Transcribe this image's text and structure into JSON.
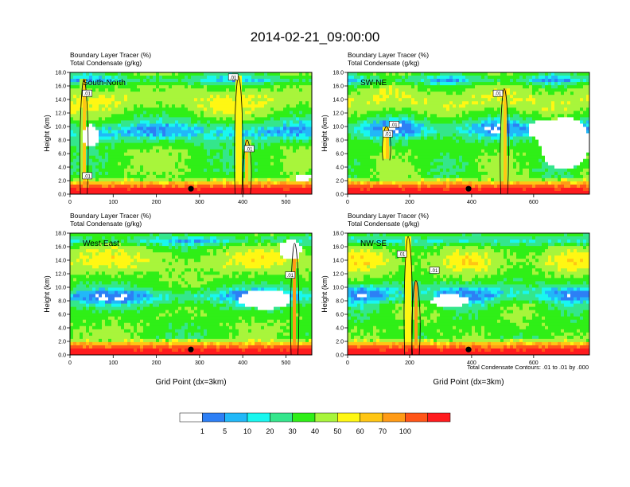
{
  "figure": {
    "title": "2014-02-21_09:00:00",
    "contour_note": "Total Condensate Contours: .01 to .01 by .000"
  },
  "colorbar": {
    "colors": [
      "#ffffff",
      "#2d7ff5",
      "#21b8f8",
      "#19f7ef",
      "#34e68c",
      "#2fef17",
      "#a8f53b",
      "#fff713",
      "#ffc614",
      "#ff9b16",
      "#ff5518",
      "#ff1b1e"
    ],
    "labels": [
      "1",
      "5",
      "10",
      "20",
      "30",
      "40",
      "50",
      "60",
      "70",
      "100"
    ]
  },
  "chart_data": [
    {
      "type": "heatmap",
      "panel_label": "South-North",
      "subtitle_line1": "Boundary Layer Tracer   (%)",
      "subtitle_line2": "Total Condensate   (g/kg)",
      "ylabel": "Height (km)",
      "xlabel": "",
      "xlim": [
        0,
        560
      ],
      "ylim": [
        0,
        18
      ],
      "xticks": [
        "0",
        "100",
        "200",
        "300",
        "400",
        "500"
      ],
      "yticks": [
        "0.0",
        "2.0",
        "4.0",
        "6.0",
        "8.0",
        "10.0",
        "12.0",
        "14.0",
        "16.0",
        "18.0"
      ],
      "marker_x": 280,
      "contour_labels": [
        [
          40,
          14.8,
          ".01"
        ],
        [
          40,
          2.6,
          ".01"
        ],
        [
          378,
          17.2,
          ".01"
        ],
        [
          415,
          6.6,
          ".01"
        ]
      ],
      "plumes": [
        [
          32,
          0,
          17
        ],
        [
          390,
          0,
          17.4
        ],
        [
          410,
          0,
          8
        ]
      ],
      "white_blobs": [
        [
          48,
          8.7,
          18,
          1.6
        ],
        [
          540,
          2.4,
          18,
          0.5
        ]
      ],
      "blue_band": [
        9.2,
        6.6
      ]
    },
    {
      "type": "heatmap",
      "panel_label": "SW-NE",
      "subtitle_line1": "Boundary Layer Tracer   (%)",
      "subtitle_line2": "Total Condensate   (g/kg)",
      "ylabel": "Height (km)",
      "xlabel": "",
      "xlim": [
        0,
        780
      ],
      "ylim": [
        0,
        18
      ],
      "xticks": [
        "0",
        "200",
        "400",
        "600"
      ],
      "yticks": [
        "0.0",
        "2.0",
        "4.0",
        "6.0",
        "8.0",
        "10.0",
        "12.0",
        "14.0",
        "16.0",
        "18.0"
      ],
      "marker_x": 390,
      "contour_labels": [
        [
          130,
          8.8,
          ".01"
        ],
        [
          150,
          10.2,
          ".01"
        ],
        [
          485,
          14.8,
          ".01"
        ]
      ],
      "plumes": [
        [
          125,
          5,
          10
        ],
        [
          505,
          0,
          15.6
        ]
      ],
      "white_blobs": [
        [
          700,
          7.5,
          80,
          3.8
        ],
        [
          640,
          9.5,
          60,
          1.5
        ]
      ],
      "blue_band": [
        9.6,
        6.8
      ]
    },
    {
      "type": "heatmap",
      "panel_label": "West-East",
      "subtitle_line1": "Boundary Layer Tracer   (%)",
      "subtitle_line2": "Total Condensate   (g/kg)",
      "ylabel": "Height (km)",
      "xlabel": "Grid Point (dx=3km)",
      "xlim": [
        0,
        560
      ],
      "ylim": [
        0,
        18
      ],
      "xticks": [
        "0",
        "100",
        "200",
        "300",
        "400",
        "500"
      ],
      "yticks": [
        "0.0",
        "2.0",
        "4.0",
        "6.0",
        "8.0",
        "10.0",
        "12.0",
        "14.0",
        "16.0",
        "18.0"
      ],
      "marker_x": 280,
      "contour_labels": [
        [
          510,
          11.7,
          ".01"
        ]
      ],
      "plumes": [
        [
          520,
          0,
          16.5
        ]
      ],
      "white_blobs": [
        [
          450,
          8.2,
          60,
          1.4
        ],
        [
          510,
          15.5,
          25,
          1.5
        ]
      ],
      "blue_band": [
        8.6,
        5.0
      ]
    },
    {
      "type": "heatmap",
      "panel_label": "NW-SE",
      "subtitle_line1": "Boundary Layer Tracer   (%)",
      "subtitle_line2": "Total Condensate   (g/kg)",
      "ylabel": "Height (km)",
      "xlabel": "Grid Point (dx=3km)",
      "xlim": [
        0,
        780
      ],
      "ylim": [
        0,
        18
      ],
      "xticks": [
        "0",
        "200",
        "400",
        "600"
      ],
      "yticks": [
        "0.0",
        "2.0",
        "4.0",
        "6.0",
        "8.0",
        "10.0",
        "12.0",
        "14.0",
        "16.0",
        "18.0"
      ],
      "marker_x": 390,
      "contour_labels": [
        [
          175,
          14.8,
          ".01"
        ],
        [
          280,
          12.4,
          ".01"
        ]
      ],
      "plumes": [
        [
          195,
          0,
          17.5
        ],
        [
          220,
          0,
          11
        ]
      ],
      "white_blobs": [
        [
          330,
          8.0,
          60,
          0.9
        ]
      ],
      "blue_band": [
        9.0,
        6.0
      ]
    }
  ]
}
